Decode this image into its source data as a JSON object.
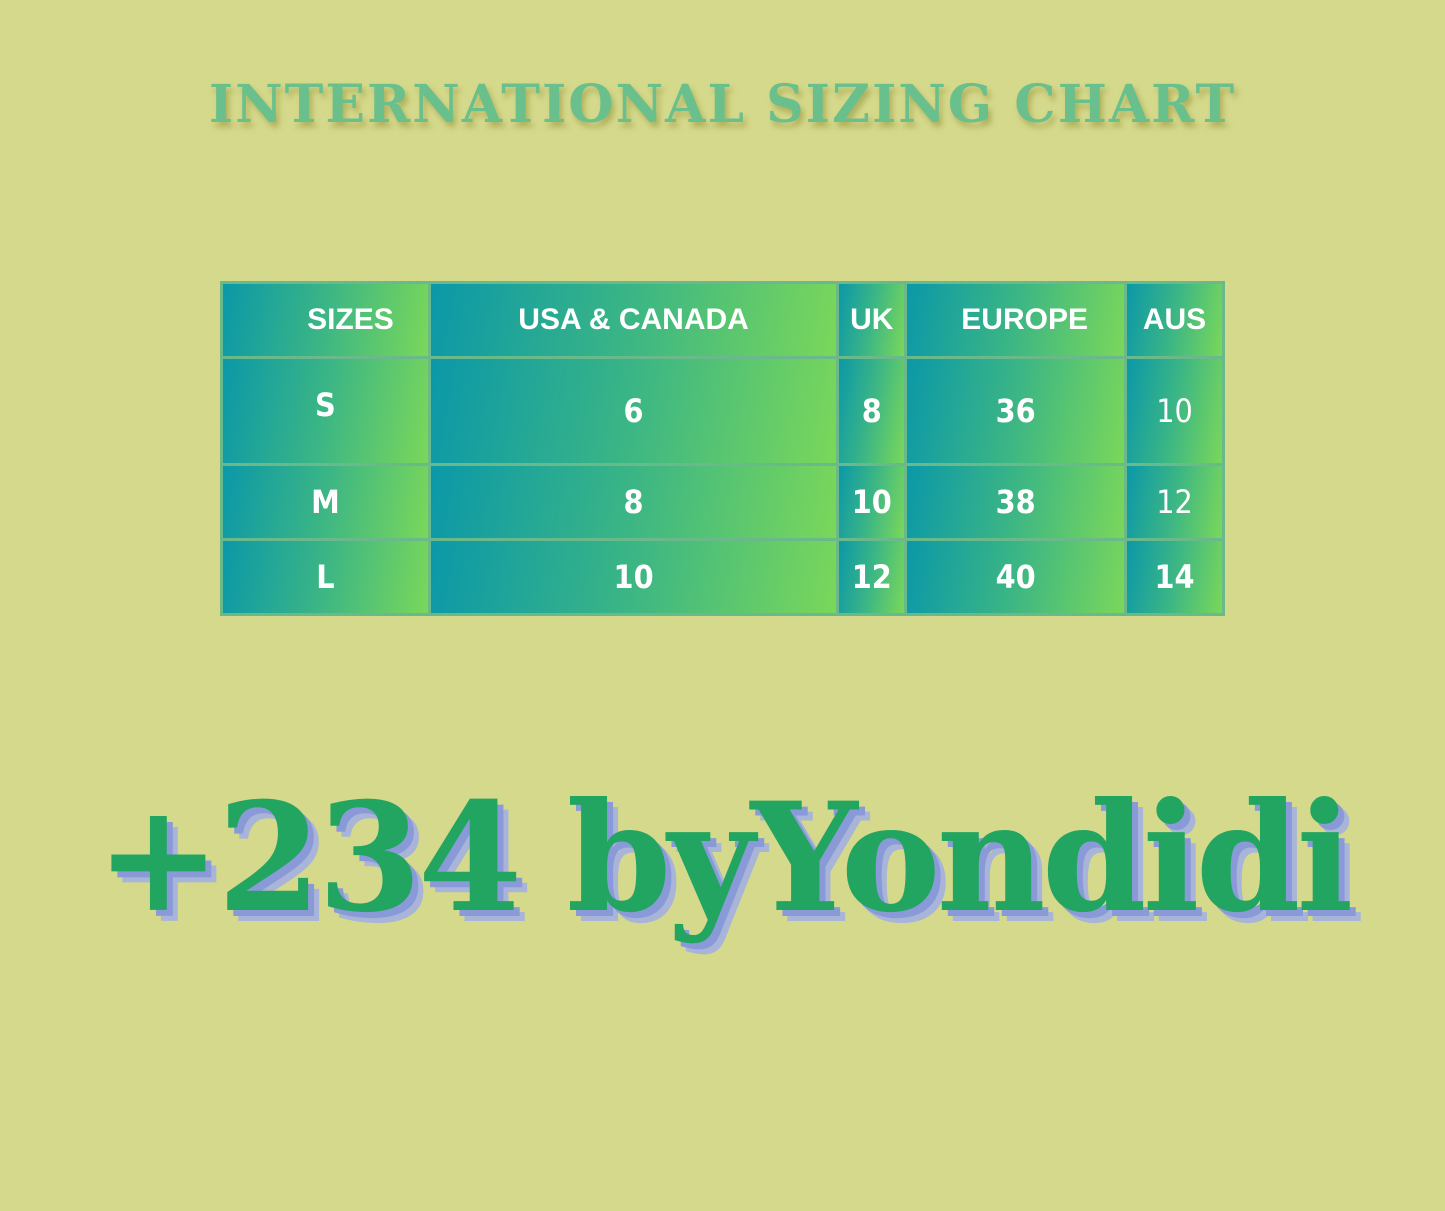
{
  "title": "International Sizing Chart",
  "table": {
    "headers": [
      "SIZES",
      "USA & CANADA",
      "UK",
      "EUROPE",
      "AUS"
    ],
    "rows": [
      [
        "S",
        "6",
        "8",
        "36",
        "10"
      ],
      [
        "M",
        "8",
        "10",
        "38",
        "12"
      ],
      [
        "L",
        "10",
        "12",
        "40",
        "14"
      ]
    ]
  },
  "brand": "+234 byYondidi",
  "colors": {
    "background": "#d5d98b",
    "title": "#69c08c",
    "cell_gradient_start": "#0b98a8",
    "cell_gradient_end": "#7ad75a",
    "brand": "#22a560",
    "brand_shadow": "#8a9ad8"
  }
}
